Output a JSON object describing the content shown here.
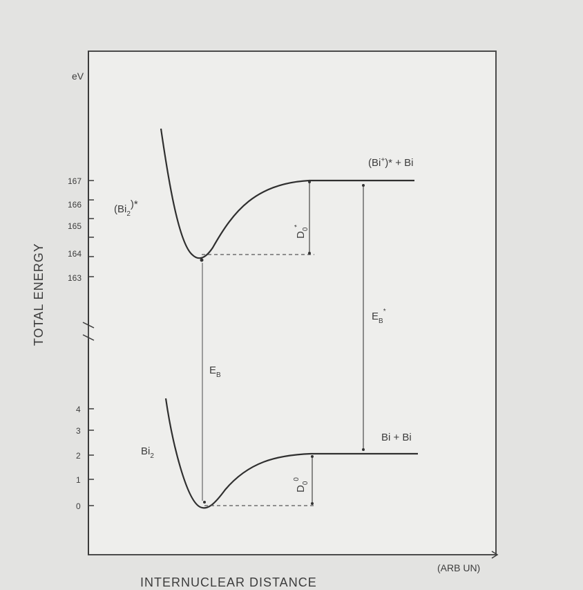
{
  "y_axis": {
    "unit": "eV",
    "title": "TOTAL ENERGY",
    "upper_ticks": [
      "167",
      "166",
      "165",
      "164",
      "163"
    ],
    "lower_ticks": [
      "4",
      "3",
      "2",
      "1",
      "0"
    ]
  },
  "x_axis": {
    "title": "INTERNUCLEAR DISTANCE",
    "unit": "(ARB UN)"
  },
  "labels": {
    "ion_molecule": "(Bi",
    "ion_molecule_sub": "2",
    "ion_molecule_sup": ")*",
    "ion_asymptote": "(Bi",
    "ion_asymptote_sup": "+",
    "ion_asymptote_rest": ")* + Bi",
    "ion_dissociation": "D",
    "ion_dissociation_sub": "0",
    "ion_dissociation_sup": "*",
    "atom_binding": "E",
    "atom_binding_sub": "B",
    "atom_binding_sup": "*",
    "molecule_binding": "E",
    "molecule_binding_sub": "B",
    "neutral_molecule": "Bi",
    "neutral_molecule_sub": "2",
    "neutral_asymptote": "Bi + Bi",
    "neutral_dissociation": "D",
    "neutral_dissociation_sub": "0",
    "neutral_dissociation_sup": "0"
  }
}
